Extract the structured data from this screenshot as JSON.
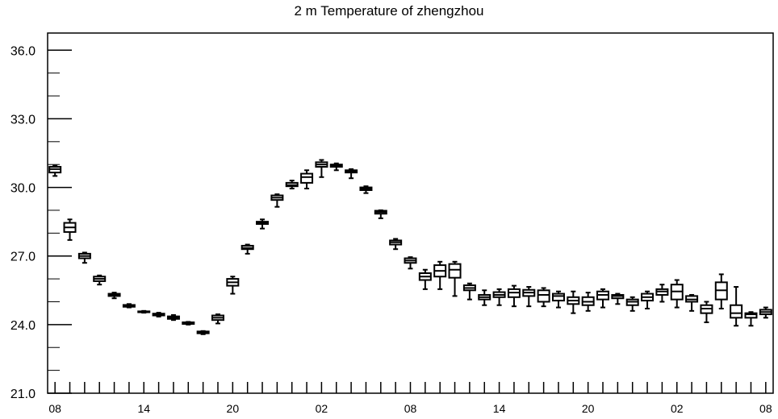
{
  "chart_data": {
    "type": "box",
    "title": "2 m Temperature of zhengzhou",
    "xlabel": "",
    "ylabel": "",
    "ylim": [
      21.0,
      36.75
    ],
    "y_ticks": [
      "21.0",
      "24.0",
      "27.0",
      "30.0",
      "33.0",
      "36.0"
    ],
    "x_tick_labels": [
      "08",
      "14",
      "20",
      "02",
      "08",
      "14",
      "20",
      "02",
      "08"
    ],
    "x_tick_label_positions": [
      0,
      6,
      12,
      18,
      24,
      30,
      36,
      42,
      48
    ],
    "x_range": [
      -0.5,
      48.5
    ],
    "grid": false,
    "boxes": [
      {
        "x": 0,
        "min": 30.5,
        "q1": 30.65,
        "median": 30.8,
        "q3": 30.9,
        "max": 30.95
      },
      {
        "x": 1,
        "min": 27.7,
        "q1": 28.05,
        "median": 28.25,
        "q3": 28.45,
        "max": 28.6
      },
      {
        "x": 2,
        "min": 26.7,
        "q1": 26.9,
        "median": 27.0,
        "q3": 27.1,
        "max": 27.15
      },
      {
        "x": 3,
        "min": 25.75,
        "q1": 25.9,
        "median": 26.0,
        "q3": 26.1,
        "max": 26.15
      },
      {
        "x": 4,
        "min": 25.15,
        "q1": 25.25,
        "median": 25.3,
        "q3": 25.35,
        "max": 25.4
      },
      {
        "x": 5,
        "min": 24.75,
        "q1": 24.78,
        "median": 24.82,
        "q3": 24.86,
        "max": 24.9
      },
      {
        "x": 6,
        "min": 24.52,
        "q1": 24.54,
        "median": 24.56,
        "q3": 24.58,
        "max": 24.6
      },
      {
        "x": 7,
        "min": 24.35,
        "q1": 24.4,
        "median": 24.44,
        "q3": 24.48,
        "max": 24.52
      },
      {
        "x": 8,
        "min": 24.2,
        "q1": 24.25,
        "median": 24.3,
        "q3": 24.36,
        "max": 24.42
      },
      {
        "x": 9,
        "min": 24.0,
        "q1": 24.03,
        "median": 24.06,
        "q3": 24.1,
        "max": 24.12
      },
      {
        "x": 10,
        "min": 23.58,
        "q1": 23.62,
        "median": 23.66,
        "q3": 23.7,
        "max": 23.72
      },
      {
        "x": 11,
        "min": 24.05,
        "q1": 24.2,
        "median": 24.3,
        "q3": 24.4,
        "max": 24.45
      },
      {
        "x": 12,
        "min": 25.35,
        "q1": 25.7,
        "median": 25.85,
        "q3": 26.0,
        "max": 26.1
      },
      {
        "x": 13,
        "min": 27.1,
        "q1": 27.3,
        "median": 27.35,
        "q3": 27.45,
        "max": 27.5
      },
      {
        "x": 14,
        "min": 28.2,
        "q1": 28.4,
        "median": 28.45,
        "q3": 28.5,
        "max": 28.6
      },
      {
        "x": 15,
        "min": 29.15,
        "q1": 29.45,
        "median": 29.55,
        "q3": 29.65,
        "max": 29.7
      },
      {
        "x": 16,
        "min": 29.95,
        "q1": 30.05,
        "median": 30.1,
        "q3": 30.2,
        "max": 30.3
      },
      {
        "x": 17,
        "min": 29.95,
        "q1": 30.2,
        "median": 30.45,
        "q3": 30.6,
        "max": 30.75
      },
      {
        "x": 18,
        "min": 30.45,
        "q1": 30.9,
        "median": 31.0,
        "q3": 31.1,
        "max": 31.2
      },
      {
        "x": 19,
        "min": 30.75,
        "q1": 30.9,
        "median": 30.95,
        "q3": 31.0,
        "max": 31.05
      },
      {
        "x": 20,
        "min": 30.4,
        "q1": 30.65,
        "median": 30.7,
        "q3": 30.75,
        "max": 30.8
      },
      {
        "x": 21,
        "min": 29.75,
        "q1": 29.88,
        "median": 29.95,
        "q3": 30.0,
        "max": 30.05
      },
      {
        "x": 22,
        "min": 28.65,
        "q1": 28.85,
        "median": 28.92,
        "q3": 28.98,
        "max": 29.0
      },
      {
        "x": 23,
        "min": 27.3,
        "q1": 27.5,
        "median": 27.6,
        "q3": 27.68,
        "max": 27.75
      },
      {
        "x": 24,
        "min": 26.45,
        "q1": 26.7,
        "median": 26.8,
        "q3": 26.9,
        "max": 26.95
      },
      {
        "x": 25,
        "min": 25.55,
        "q1": 25.95,
        "median": 26.1,
        "q3": 26.25,
        "max": 26.4
      },
      {
        "x": 26,
        "min": 25.55,
        "q1": 26.1,
        "median": 26.35,
        "q3": 26.6,
        "max": 26.75
      },
      {
        "x": 27,
        "min": 25.25,
        "q1": 26.05,
        "median": 26.4,
        "q3": 26.65,
        "max": 26.75
      },
      {
        "x": 28,
        "min": 25.1,
        "q1": 25.5,
        "median": 25.6,
        "q3": 25.72,
        "max": 25.8
      },
      {
        "x": 29,
        "min": 24.85,
        "q1": 25.1,
        "median": 25.2,
        "q3": 25.3,
        "max": 25.5
      },
      {
        "x": 30,
        "min": 24.85,
        "q1": 25.2,
        "median": 25.3,
        "q3": 25.42,
        "max": 25.55
      },
      {
        "x": 31,
        "min": 24.8,
        "q1": 25.2,
        "median": 25.4,
        "q3": 25.55,
        "max": 25.7
      },
      {
        "x": 32,
        "min": 24.8,
        "q1": 25.25,
        "median": 25.4,
        "q3": 25.52,
        "max": 25.65
      },
      {
        "x": 33,
        "min": 24.8,
        "q1": 25.0,
        "median": 25.3,
        "q3": 25.5,
        "max": 25.6
      },
      {
        "x": 34,
        "min": 24.75,
        "q1": 25.05,
        "median": 25.25,
        "q3": 25.35,
        "max": 25.45
      },
      {
        "x": 35,
        "min": 24.5,
        "q1": 24.9,
        "median": 25.05,
        "q3": 25.2,
        "max": 25.45
      },
      {
        "x": 36,
        "min": 24.6,
        "q1": 24.85,
        "median": 25.0,
        "q3": 25.2,
        "max": 25.4
      },
      {
        "x": 37,
        "min": 24.75,
        "q1": 25.1,
        "median": 25.3,
        "q3": 25.45,
        "max": 25.55
      },
      {
        "x": 38,
        "min": 24.9,
        "q1": 25.15,
        "median": 25.25,
        "q3": 25.3,
        "max": 25.35
      },
      {
        "x": 39,
        "min": 24.6,
        "q1": 24.85,
        "median": 25.0,
        "q3": 25.1,
        "max": 25.2
      },
      {
        "x": 40,
        "min": 24.7,
        "q1": 25.05,
        "median": 25.2,
        "q3": 25.35,
        "max": 25.45
      },
      {
        "x": 41,
        "min": 25.0,
        "q1": 25.3,
        "median": 25.45,
        "q3": 25.55,
        "max": 25.75
      },
      {
        "x": 42,
        "min": 24.75,
        "q1": 25.1,
        "median": 25.45,
        "q3": 25.75,
        "max": 25.95
      },
      {
        "x": 43,
        "min": 24.6,
        "q1": 25.0,
        "median": 25.1,
        "q3": 25.25,
        "max": 25.3
      },
      {
        "x": 44,
        "min": 24.1,
        "q1": 24.5,
        "median": 24.7,
        "q3": 24.85,
        "max": 25.0
      },
      {
        "x": 45,
        "min": 24.7,
        "q1": 25.1,
        "median": 25.5,
        "q3": 25.85,
        "max": 26.2
      },
      {
        "x": 46,
        "min": 23.95,
        "q1": 24.3,
        "median": 24.5,
        "q3": 24.85,
        "max": 25.65
      },
      {
        "x": 47,
        "min": 23.95,
        "q1": 24.3,
        "median": 24.45,
        "q3": 24.5,
        "max": 24.55
      },
      {
        "x": 48,
        "min": 24.3,
        "q1": 24.45,
        "median": 24.55,
        "q3": 24.65,
        "max": 24.75
      }
    ]
  }
}
